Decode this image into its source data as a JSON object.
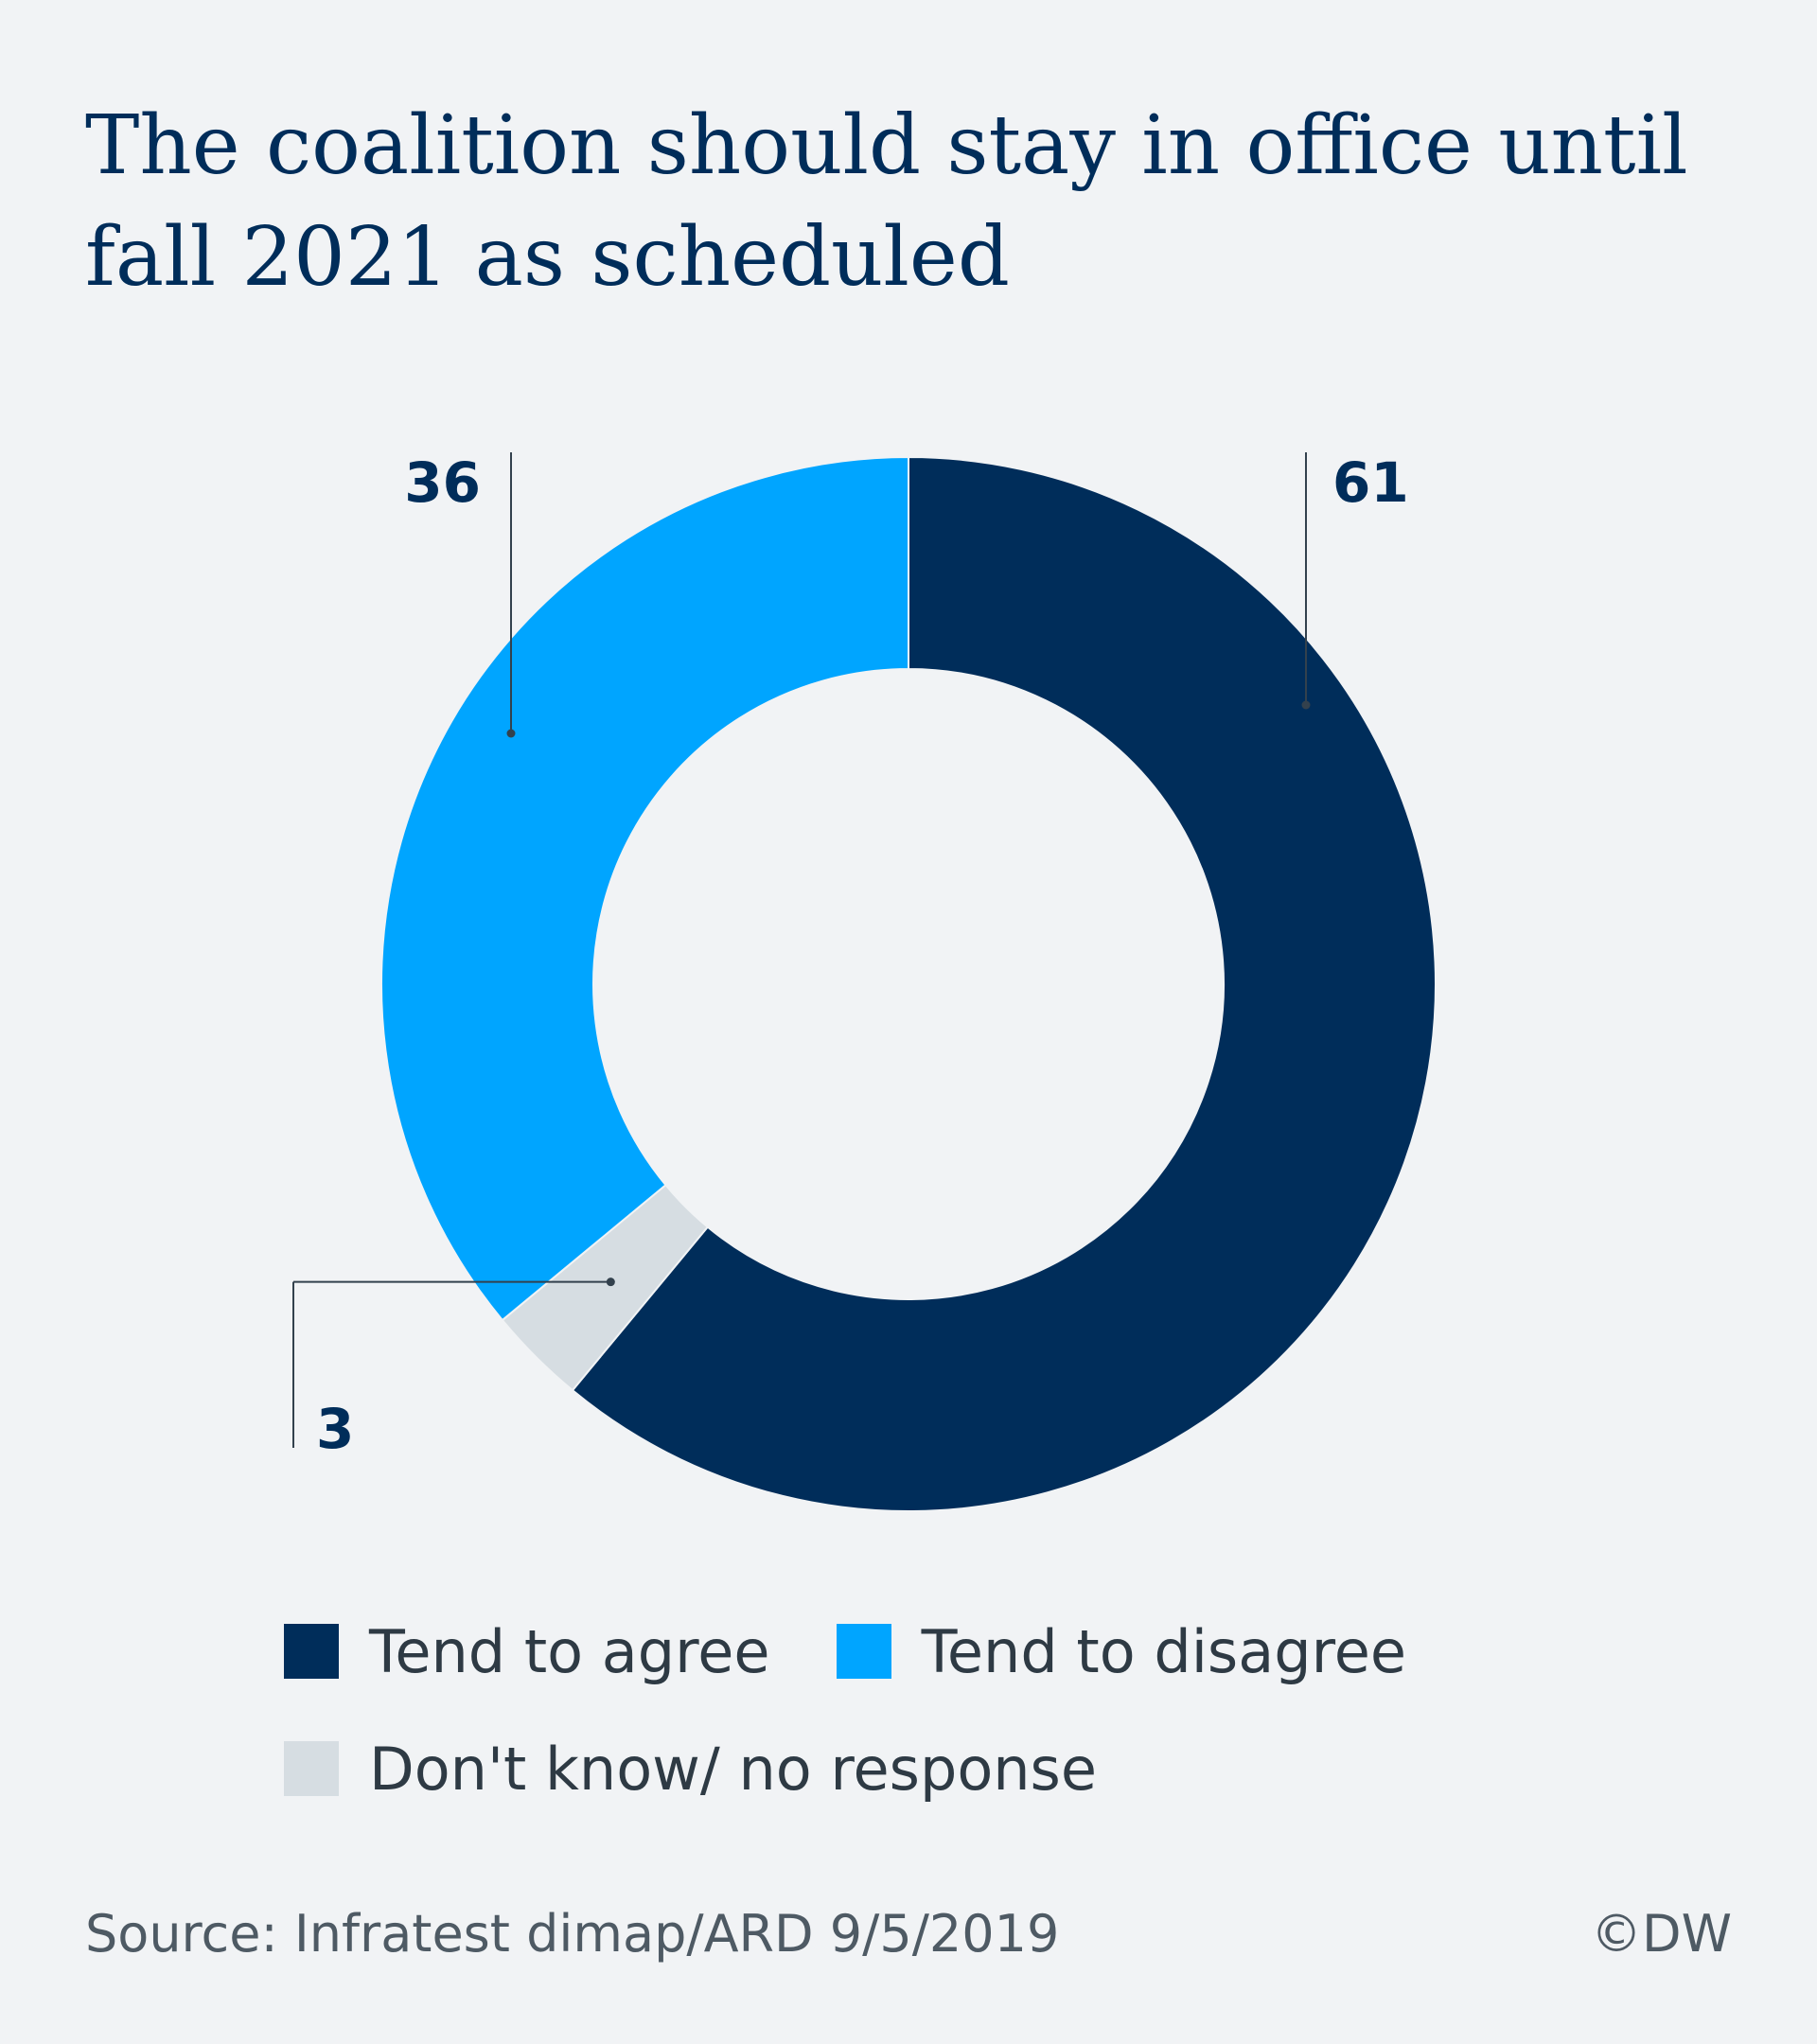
{
  "chart_data": {
    "type": "pie",
    "title": "The coalition should stay in office until fall 2021 as scheduled",
    "slices": [
      {
        "name": "Tend to agree",
        "value": 61,
        "label": "61",
        "color": "#002d5a"
      },
      {
        "name": "Don't know/ no response",
        "value": 3,
        "label": "3",
        "color": "#d6dde2"
      },
      {
        "name": "Tend to disagree",
        "value": 36,
        "label": "36",
        "color": "#00a5ff"
      }
    ],
    "donut": true,
    "legend_position": "bottom"
  },
  "legend": {
    "row1": [
      "Tend to agree",
      "Tend to disagree"
    ],
    "row2": [
      "Don't know/ no response"
    ]
  },
  "footer": {
    "source": "Source: Infratest dimap/ARD 9/5/2019",
    "copyright": "©DW"
  }
}
